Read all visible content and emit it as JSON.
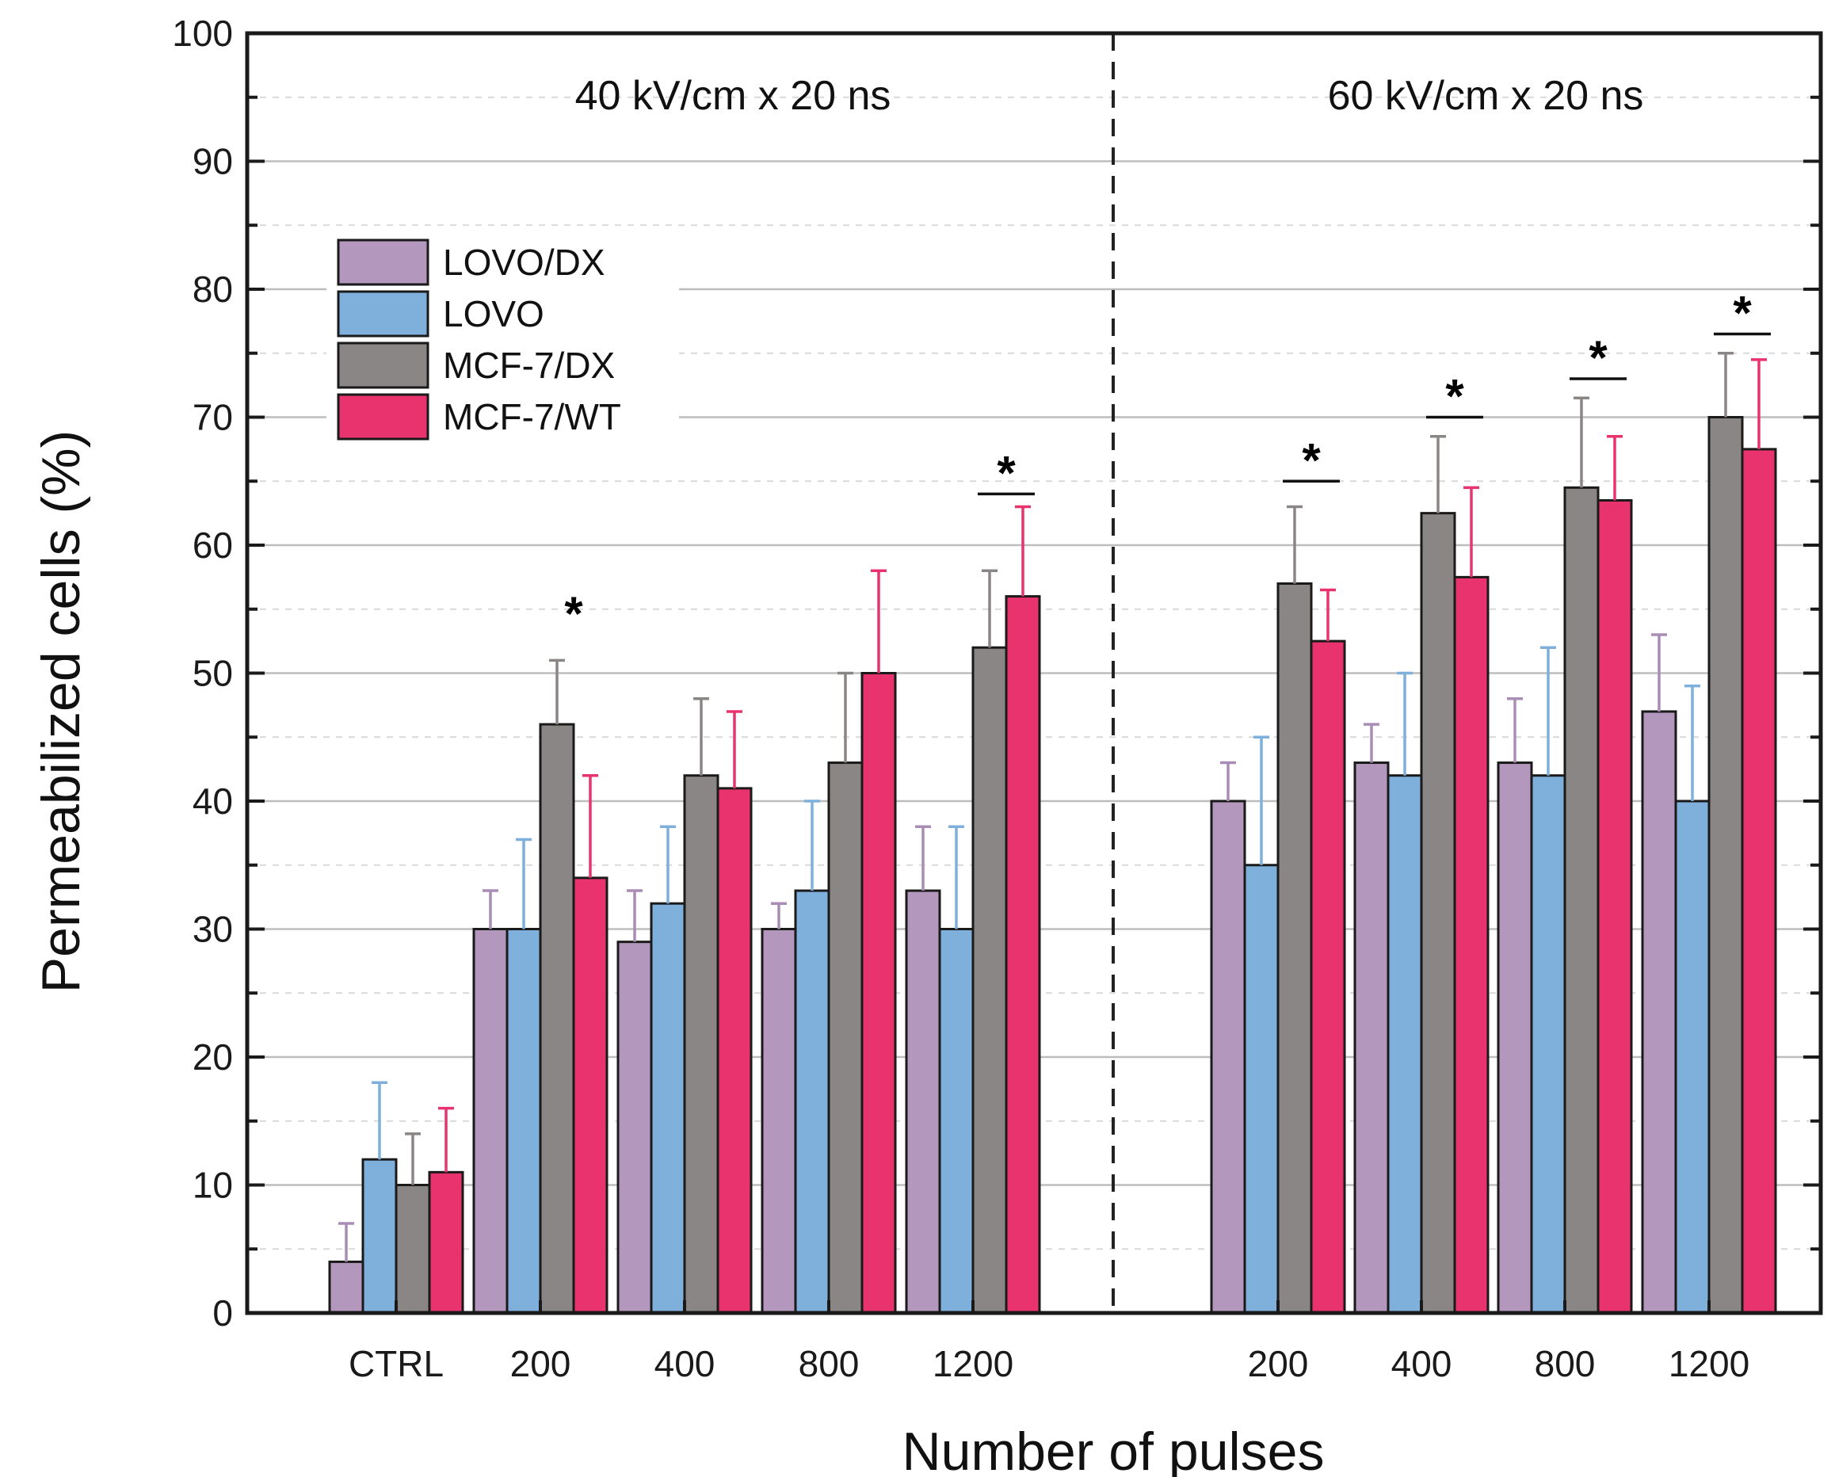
{
  "chart_data": {
    "type": "bar",
    "ylabel": "Permeabilized cells (%)",
    "xlabel": "Number of pulses",
    "ylim": [
      0,
      100
    ],
    "yticks": [
      0,
      10,
      20,
      30,
      40,
      50,
      60,
      70,
      80,
      90,
      100
    ],
    "grid": true,
    "legend_position": "top-left",
    "groups": [
      {
        "title": "40 kV/cm x 20 ns",
        "categories": [
          "CTRL",
          "200",
          "400",
          "800",
          "1200"
        ]
      },
      {
        "title": "60 kV/cm x 20 ns",
        "categories": [
          "200",
          "400",
          "800",
          "1200"
        ]
      }
    ],
    "categories": [
      "CTRL",
      "200",
      "400",
      "800",
      "1200",
      "200",
      "400",
      "800",
      "1200"
    ],
    "series": [
      {
        "name": "LOVO/DX",
        "color": "#b497bd",
        "errcolor": "#a98db5",
        "values": [
          4,
          30,
          29,
          30,
          33,
          40,
          43,
          43,
          47
        ],
        "errors": [
          3,
          3,
          4,
          2,
          5,
          3,
          3,
          5,
          6
        ]
      },
      {
        "name": "LOVO",
        "color": "#7fb0dc",
        "errcolor": "#7fb0dc",
        "values": [
          12,
          30,
          32,
          33,
          30,
          35,
          42,
          42,
          40
        ],
        "errors": [
          6,
          7,
          6,
          7,
          8,
          10,
          8,
          10,
          9
        ]
      },
      {
        "name": "MCF-7/DX",
        "color": "#8b8686",
        "errcolor": "#8b8686",
        "values": [
          10,
          46,
          42,
          43,
          52,
          57,
          62.5,
          64.5,
          70
        ],
        "errors": [
          4,
          5,
          6,
          7,
          6,
          6,
          6,
          7,
          5
        ]
      },
      {
        "name": "MCF-7/WT",
        "color": "#e8336f",
        "errcolor": "#e8336f",
        "values": [
          11,
          34,
          41,
          50,
          56,
          52.5,
          57.5,
          63.5,
          67.5
        ],
        "errors": [
          5,
          8,
          6,
          8,
          7,
          4,
          7,
          5,
          7
        ]
      }
    ],
    "significance": [
      {
        "category_index": 1,
        "label": "*",
        "bracket": false,
        "y": 53
      },
      {
        "category_index": 4,
        "label": "*",
        "bracket": true,
        "y": 64
      },
      {
        "category_index": 5,
        "label": "*",
        "bracket": true,
        "y": 65
      },
      {
        "category_index": 6,
        "label": "*",
        "bracket": true,
        "y": 70
      },
      {
        "category_index": 7,
        "label": "*",
        "bracket": true,
        "y": 73
      },
      {
        "category_index": 8,
        "label": "*",
        "bracket": true,
        "y": 76.5
      }
    ]
  }
}
